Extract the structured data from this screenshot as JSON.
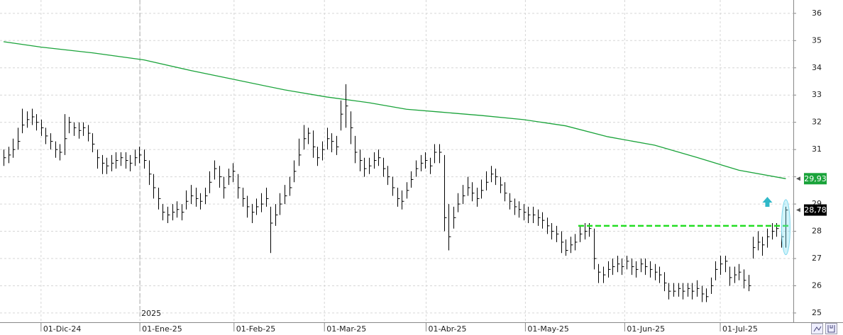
{
  "chart_data": {
    "type": "ohlc",
    "xlim": [
      -0.76,
      168.6
    ],
    "xticks": [
      {
        "value": 8.0,
        "label": "01-Dic-24"
      },
      {
        "value": 29.1,
        "label": "01-Ene-25"
      },
      {
        "value": 49.2,
        "label": "01-Feb-25"
      },
      {
        "value": 68.5,
        "label": "01-Mar-25"
      },
      {
        "value": 90.2,
        "label": "01-Abr-25"
      },
      {
        "value": 111.4,
        "label": "01-May-25"
      },
      {
        "value": 132.6,
        "label": "01-Jun-25"
      },
      {
        "value": 153.0,
        "label": "01-Jul-25"
      }
    ],
    "year_label": "2025",
    "ylim": [
      24.66,
      36.49
    ],
    "yticks": [
      25,
      26,
      27,
      28,
      29,
      30,
      31,
      32,
      33,
      34,
      35,
      36
    ],
    "grid": true,
    "color": "#000000",
    "high": [
      31.0,
      31.1,
      31.4,
      31.8,
      32.5,
      32.4,
      32.5,
      32.3,
      32.1,
      31.8,
      31.6,
      31.3,
      31.2,
      32.3,
      32.2,
      32.0,
      32.0,
      32.0,
      31.9,
      31.6,
      31.0,
      30.8,
      30.7,
      30.8,
      30.9,
      30.9,
      30.9,
      30.8,
      31.0,
      31.1,
      31.0,
      30.6,
      30.1,
      29.6,
      29.0,
      28.9,
      29.0,
      29.1,
      29.0,
      29.5,
      29.7,
      29.6,
      29.4,
      29.6,
      30.2,
      30.6,
      30.4,
      30.0,
      30.3,
      30.5,
      30.1,
      29.6,
      29.3,
      29.0,
      29.2,
      29.4,
      29.6,
      28.9,
      29.0,
      29.4,
      29.7,
      30.0,
      30.6,
      31.4,
      31.9,
      31.8,
      31.7,
      31.1,
      31.3,
      31.8,
      31.6,
      31.5,
      32.8,
      33.4,
      32.4,
      31.5,
      31.0,
      30.7,
      30.7,
      30.9,
      31.0,
      30.7,
      30.4,
      30.0,
      29.6,
      29.5,
      29.8,
      30.2,
      30.6,
      30.8,
      30.9,
      30.7,
      31.2,
      31.2,
      30.8,
      29.0,
      28.9,
      29.4,
      29.7,
      30.0,
      29.8,
      29.6,
      29.9,
      30.2,
      30.4,
      30.3,
      30.0,
      29.8,
      29.4,
      29.2,
      29.1,
      29.0,
      28.9,
      28.9,
      28.8,
      28.7,
      28.5,
      28.3,
      28.2,
      28.0,
      27.7,
      27.8,
      27.9,
      28.2,
      28.3,
      28.3,
      28.1,
      26.8,
      26.7,
      26.9,
      27.0,
      27.1,
      27.0,
      27.1,
      27.0,
      26.9,
      27.0,
      27.0,
      26.9,
      26.8,
      26.7,
      26.5,
      26.1,
      26.1,
      26.1,
      26.1,
      26.1,
      26.1,
      26.2,
      26.0,
      25.9,
      26.3,
      26.9,
      27.1,
      27.1,
      26.7,
      26.7,
      26.8,
      26.6,
      26.4,
      27.8,
      28.0,
      27.8,
      28.1,
      28.3,
      28.3,
      28.2,
      28.9
    ],
    "low": [
      30.4,
      30.5,
      30.7,
      31.0,
      31.6,
      31.8,
      31.9,
      31.7,
      31.5,
      31.2,
      31.0,
      30.7,
      30.6,
      30.8,
      31.6,
      31.5,
      31.4,
      31.5,
      31.3,
      30.9,
      30.3,
      30.1,
      30.1,
      30.2,
      30.3,
      30.4,
      30.3,
      30.2,
      30.4,
      30.5,
      30.3,
      29.7,
      29.2,
      28.8,
      28.4,
      28.3,
      28.4,
      28.5,
      28.4,
      28.8,
      29.0,
      28.9,
      28.8,
      29.0,
      29.4,
      29.9,
      29.6,
      29.2,
      29.7,
      29.8,
      29.2,
      28.9,
      28.5,
      28.3,
      28.6,
      28.7,
      28.9,
      27.2,
      28.2,
      28.6,
      29.0,
      29.3,
      29.8,
      30.4,
      31.0,
      31.2,
      30.7,
      30.4,
      30.6,
      31.0,
      30.9,
      30.8,
      31.7,
      31.8,
      31.2,
      30.5,
      30.2,
      30.0,
      30.1,
      30.3,
      30.4,
      30.0,
      29.7,
      29.3,
      28.9,
      28.8,
      29.2,
      29.6,
      30.0,
      30.2,
      30.3,
      30.1,
      30.5,
      30.5,
      28.0,
      27.3,
      28.1,
      28.7,
      29.0,
      29.3,
      29.1,
      28.9,
      29.2,
      29.5,
      29.8,
      29.7,
      29.4,
      29.1,
      28.8,
      28.6,
      28.5,
      28.4,
      28.3,
      28.3,
      28.2,
      28.1,
      27.9,
      27.7,
      27.6,
      27.2,
      27.1,
      27.2,
      27.3,
      27.6,
      27.7,
      27.8,
      26.6,
      26.1,
      26.1,
      26.3,
      26.4,
      26.5,
      26.4,
      26.6,
      26.4,
      26.3,
      26.5,
      26.4,
      26.3,
      26.2,
      26.1,
      25.8,
      25.5,
      25.6,
      25.6,
      25.5,
      25.6,
      25.5,
      25.6,
      25.4,
      25.4,
      25.7,
      26.2,
      26.4,
      26.5,
      26.0,
      26.1,
      26.2,
      25.9,
      25.8,
      27.0,
      27.3,
      27.1,
      27.4,
      27.7,
      27.8,
      27.4,
      27.4
    ],
    "close": [
      30.7,
      30.8,
      31.0,
      31.3,
      31.9,
      32.1,
      32.2,
      32.0,
      31.8,
      31.5,
      31.3,
      31.0,
      30.9,
      31.4,
      32.0,
      31.8,
      31.7,
      31.8,
      31.6,
      31.2,
      30.7,
      30.5,
      30.4,
      30.5,
      30.6,
      30.7,
      30.6,
      30.5,
      30.7,
      30.8,
      30.6,
      30.1,
      29.6,
      29.2,
      28.7,
      28.6,
      28.7,
      28.8,
      28.7,
      29.1,
      29.3,
      29.2,
      29.1,
      29.3,
      29.8,
      30.3,
      30.0,
      29.6,
      30.0,
      30.2,
      29.6,
      29.2,
      28.9,
      28.7,
      28.9,
      29.0,
      29.2,
      28.3,
      28.6,
      29.0,
      29.3,
      29.6,
      30.2,
      30.8,
      31.4,
      31.6,
      31.1,
      30.7,
      31.0,
      31.4,
      31.3,
      31.1,
      32.3,
      32.6,
      31.8,
      30.9,
      30.6,
      30.3,
      30.4,
      30.6,
      30.7,
      30.3,
      30.0,
      29.6,
      29.2,
      29.1,
      29.5,
      29.9,
      30.3,
      30.5,
      30.6,
      30.4,
      30.9,
      30.9,
      28.5,
      27.8,
      28.5,
      29.0,
      29.3,
      29.6,
      29.4,
      29.2,
      29.5,
      29.8,
      30.1,
      30.0,
      29.7,
      29.4,
      29.1,
      28.9,
      28.8,
      28.7,
      28.6,
      28.6,
      28.5,
      28.4,
      28.2,
      28.0,
      27.9,
      27.6,
      27.3,
      27.5,
      27.6,
      27.9,
      28.0,
      28.1,
      27.0,
      26.5,
      26.4,
      26.6,
      26.7,
      26.8,
      26.7,
      26.9,
      26.7,
      26.6,
      26.8,
      26.7,
      26.6,
      26.5,
      26.4,
      26.1,
      25.8,
      25.8,
      25.9,
      25.8,
      25.9,
      25.8,
      25.9,
      25.7,
      25.6,
      26.0,
      26.6,
      26.8,
      26.9,
      26.3,
      26.4,
      26.5,
      26.2,
      26.0,
      27.4,
      27.6,
      27.5,
      27.8,
      28.0,
      28.1,
      27.8,
      28.78
    ],
    "ma": {
      "color": "#1aa33a",
      "x": [
        0,
        8,
        19,
        30,
        40,
        49,
        60,
        69,
        78,
        86,
        93,
        102,
        111,
        120,
        129,
        139,
        148,
        157,
        167
      ],
      "values": [
        34.96,
        34.76,
        34.55,
        34.29,
        33.9,
        33.58,
        33.19,
        32.93,
        32.72,
        32.48,
        32.38,
        32.25,
        32.1,
        31.87,
        31.47,
        31.16,
        30.71,
        30.24,
        29.93
      ]
    },
    "target": {
      "color": "#22dd22",
      "value": 28.2,
      "x": [
        122.7,
        167.7
      ]
    },
    "last_labels": [
      {
        "value": 29.93,
        "label": "29,93",
        "color": "#1aa33a"
      },
      {
        "value": 28.78,
        "label": "28,78",
        "color": "#000000"
      }
    ]
  }
}
